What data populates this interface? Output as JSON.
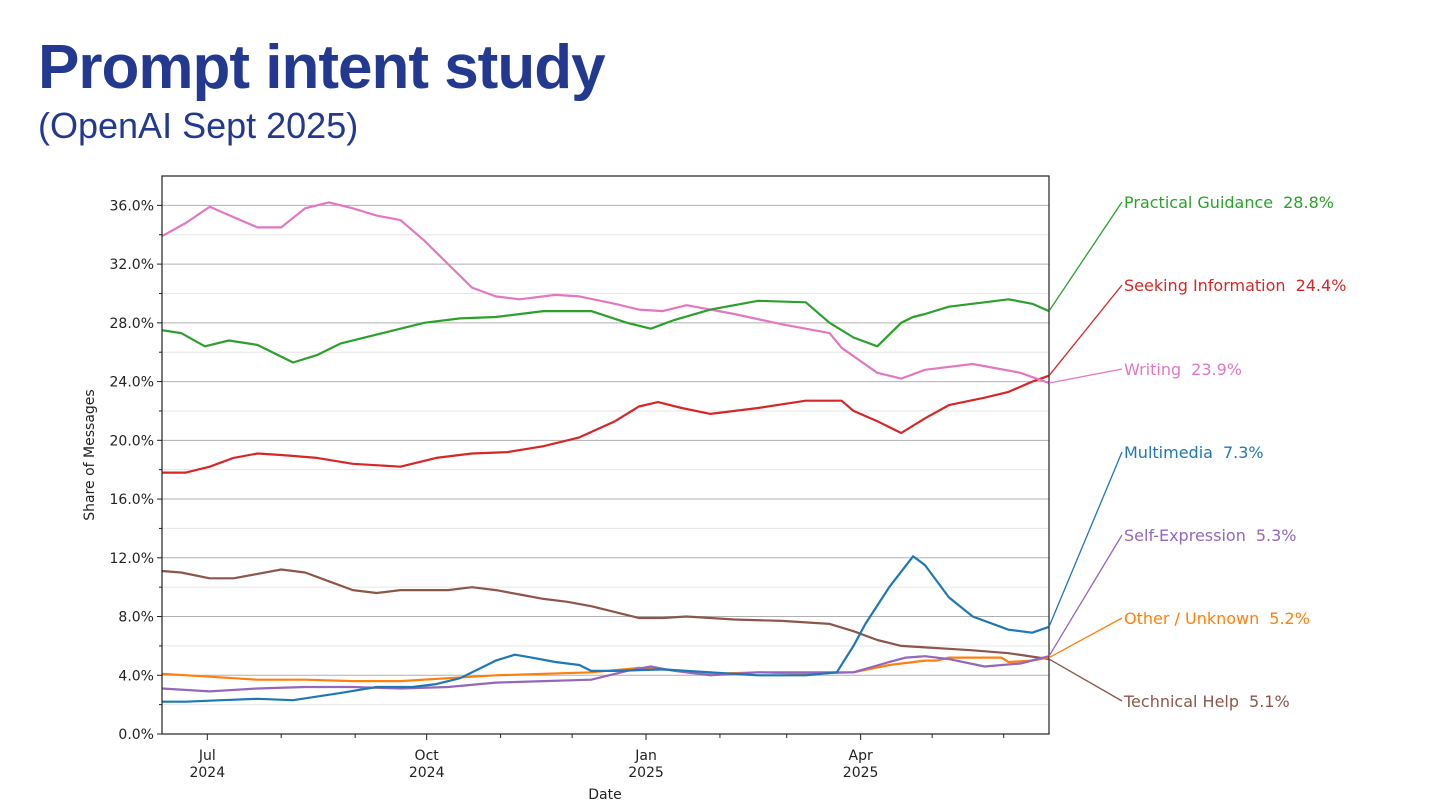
{
  "header": {
    "title": "Prompt intent study",
    "subtitle": "(OpenAI Sept 2025)"
  },
  "chart_data": {
    "type": "line",
    "xlabel": "Date",
    "ylabel": "Share of Messages",
    "ylim": [
      0,
      38
    ],
    "xlim": [
      0,
      372
    ],
    "grid": "horizontal",
    "y_ticks": [
      0,
      4,
      8,
      12,
      16,
      20,
      24,
      28,
      32,
      36
    ],
    "y_tick_labels": [
      "0.0%",
      "4.0%",
      "8.0%",
      "12.0%",
      "16.0%",
      "20.0%",
      "24.0%",
      "28.0%",
      "32.0%",
      "36.0%"
    ],
    "x_ticks": [
      {
        "x": 19,
        "line1": "Jul",
        "line2": "2024"
      },
      {
        "x": 111,
        "line1": "Oct",
        "line2": "2024"
      },
      {
        "x": 203,
        "line1": "Jan",
        "line2": "2025"
      },
      {
        "x": 293,
        "line1": "Apr",
        "line2": "2025"
      }
    ],
    "x_minor_ticks": [
      50,
      81,
      142,
      172,
      234,
      262,
      323,
      353
    ],
    "x_unit": "days since 2024-06-12",
    "series": [
      {
        "name": "Practical Guidance",
        "value_label": "28.8%",
        "color": "#2ca02c",
        "x": [
          0,
          8,
          18,
          28,
          40,
          55,
          65,
          75,
          90,
          110,
          125,
          140,
          160,
          180,
          195,
          205,
          215,
          230,
          250,
          270,
          280,
          290,
          300,
          310,
          315,
          320,
          330,
          345,
          355,
          365,
          372
        ],
        "y": [
          27.5,
          27.3,
          26.4,
          26.8,
          26.5,
          25.3,
          25.8,
          26.6,
          27.2,
          28.0,
          28.3,
          28.4,
          28.8,
          28.8,
          28.0,
          27.6,
          28.2,
          28.9,
          29.5,
          29.4,
          28.0,
          27.0,
          26.4,
          28.0,
          28.4,
          28.6,
          29.1,
          29.4,
          29.6,
          29.3,
          28.8
        ]
      },
      {
        "name": "Seeking Information",
        "value_label": "24.4%",
        "color": "#d62728",
        "x": [
          0,
          10,
          20,
          30,
          40,
          50,
          65,
          80,
          100,
          115,
          130,
          145,
          160,
          175,
          190,
          200,
          208,
          218,
          230,
          250,
          270,
          285,
          290,
          300,
          310,
          320,
          330,
          345,
          355,
          365,
          372
        ],
        "y": [
          17.8,
          17.8,
          18.2,
          18.8,
          19.1,
          19.0,
          18.8,
          18.4,
          18.2,
          18.8,
          19.1,
          19.2,
          19.6,
          20.2,
          21.3,
          22.3,
          22.6,
          22.2,
          21.8,
          22.2,
          22.7,
          22.7,
          22.0,
          21.3,
          20.5,
          21.5,
          22.4,
          22.9,
          23.3,
          24.0,
          24.4
        ]
      },
      {
        "name": "Writing",
        "value_label": "23.9%",
        "color": "#e377c2",
        "x": [
          0,
          10,
          20,
          30,
          40,
          50,
          60,
          70,
          80,
          90,
          100,
          110,
          120,
          130,
          140,
          150,
          165,
          175,
          190,
          200,
          210,
          220,
          240,
          260,
          280,
          285,
          300,
          310,
          320,
          340,
          360,
          372
        ],
        "y": [
          33.9,
          34.8,
          35.9,
          35.2,
          34.5,
          34.5,
          35.8,
          36.2,
          35.8,
          35.3,
          35.0,
          33.6,
          32.0,
          30.4,
          29.8,
          29.6,
          29.9,
          29.8,
          29.3,
          28.9,
          28.8,
          29.2,
          28.6,
          27.9,
          27.3,
          26.3,
          24.6,
          24.2,
          24.8,
          25.2,
          24.6,
          23.9
        ]
      },
      {
        "name": "Multimedia",
        "value_label": "7.3%",
        "color": "#1f77b4",
        "x": [
          0,
          10,
          25,
          40,
          55,
          75,
          90,
          105,
          115,
          125,
          140,
          148,
          155,
          165,
          175,
          180,
          190,
          210,
          230,
          250,
          270,
          283,
          290,
          295,
          305,
          315,
          320,
          330,
          340,
          355,
          365,
          372
        ],
        "y": [
          2.2,
          2.2,
          2.3,
          2.4,
          2.3,
          2.8,
          3.2,
          3.2,
          3.4,
          3.8,
          5.0,
          5.4,
          5.2,
          4.9,
          4.7,
          4.3,
          4.3,
          4.4,
          4.2,
          4.0,
          4.0,
          4.2,
          6.0,
          7.5,
          10.0,
          12.1,
          11.5,
          9.3,
          8.0,
          7.1,
          6.9,
          7.3
        ]
      },
      {
        "name": "Self-Expression",
        "value_label": "5.3%",
        "color": "#9467bd",
        "x": [
          0,
          20,
          40,
          60,
          80,
          100,
          120,
          140,
          160,
          180,
          195,
          205,
          215,
          230,
          250,
          270,
          290,
          305,
          312,
          320,
          330,
          345,
          360,
          372
        ],
        "y": [
          3.1,
          2.9,
          3.1,
          3.2,
          3.2,
          3.1,
          3.2,
          3.5,
          3.6,
          3.7,
          4.3,
          4.6,
          4.3,
          4.0,
          4.2,
          4.2,
          4.2,
          4.9,
          5.2,
          5.3,
          5.1,
          4.6,
          4.8,
          5.3
        ]
      },
      {
        "name": "Other / Unknown",
        "value_label": "5.2%",
        "color": "#ff7f0e",
        "x": [
          0,
          20,
          40,
          60,
          80,
          100,
          120,
          140,
          160,
          180,
          200,
          210,
          230,
          250,
          270,
          290,
          305,
          320,
          325,
          330,
          345,
          352,
          355,
          365,
          372
        ],
        "y": [
          4.1,
          3.9,
          3.7,
          3.7,
          3.6,
          3.6,
          3.8,
          4.0,
          4.1,
          4.2,
          4.5,
          4.4,
          4.1,
          4.2,
          4.1,
          4.2,
          4.7,
          5.0,
          5.0,
          5.2,
          5.2,
          5.2,
          4.9,
          5.0,
          5.2
        ]
      },
      {
        "name": "Technical Help",
        "value_label": "5.1%",
        "color": "#8c564b",
        "x": [
          0,
          8,
          20,
          30,
          40,
          50,
          60,
          70,
          80,
          90,
          100,
          110,
          120,
          130,
          140,
          150,
          160,
          170,
          180,
          190,
          200,
          210,
          220,
          230,
          240,
          260,
          280,
          290,
          300,
          310,
          320,
          330,
          340,
          355,
          372
        ],
        "y": [
          11.1,
          11.0,
          10.6,
          10.6,
          10.9,
          11.2,
          11.0,
          10.4,
          9.8,
          9.6,
          9.8,
          9.8,
          9.8,
          10.0,
          9.8,
          9.5,
          9.2,
          9.0,
          8.7,
          8.3,
          7.9,
          7.9,
          8.0,
          7.9,
          7.8,
          7.7,
          7.5,
          7.0,
          6.4,
          6.0,
          5.9,
          5.8,
          5.7,
          5.5,
          5.1
        ]
      }
    ]
  }
}
